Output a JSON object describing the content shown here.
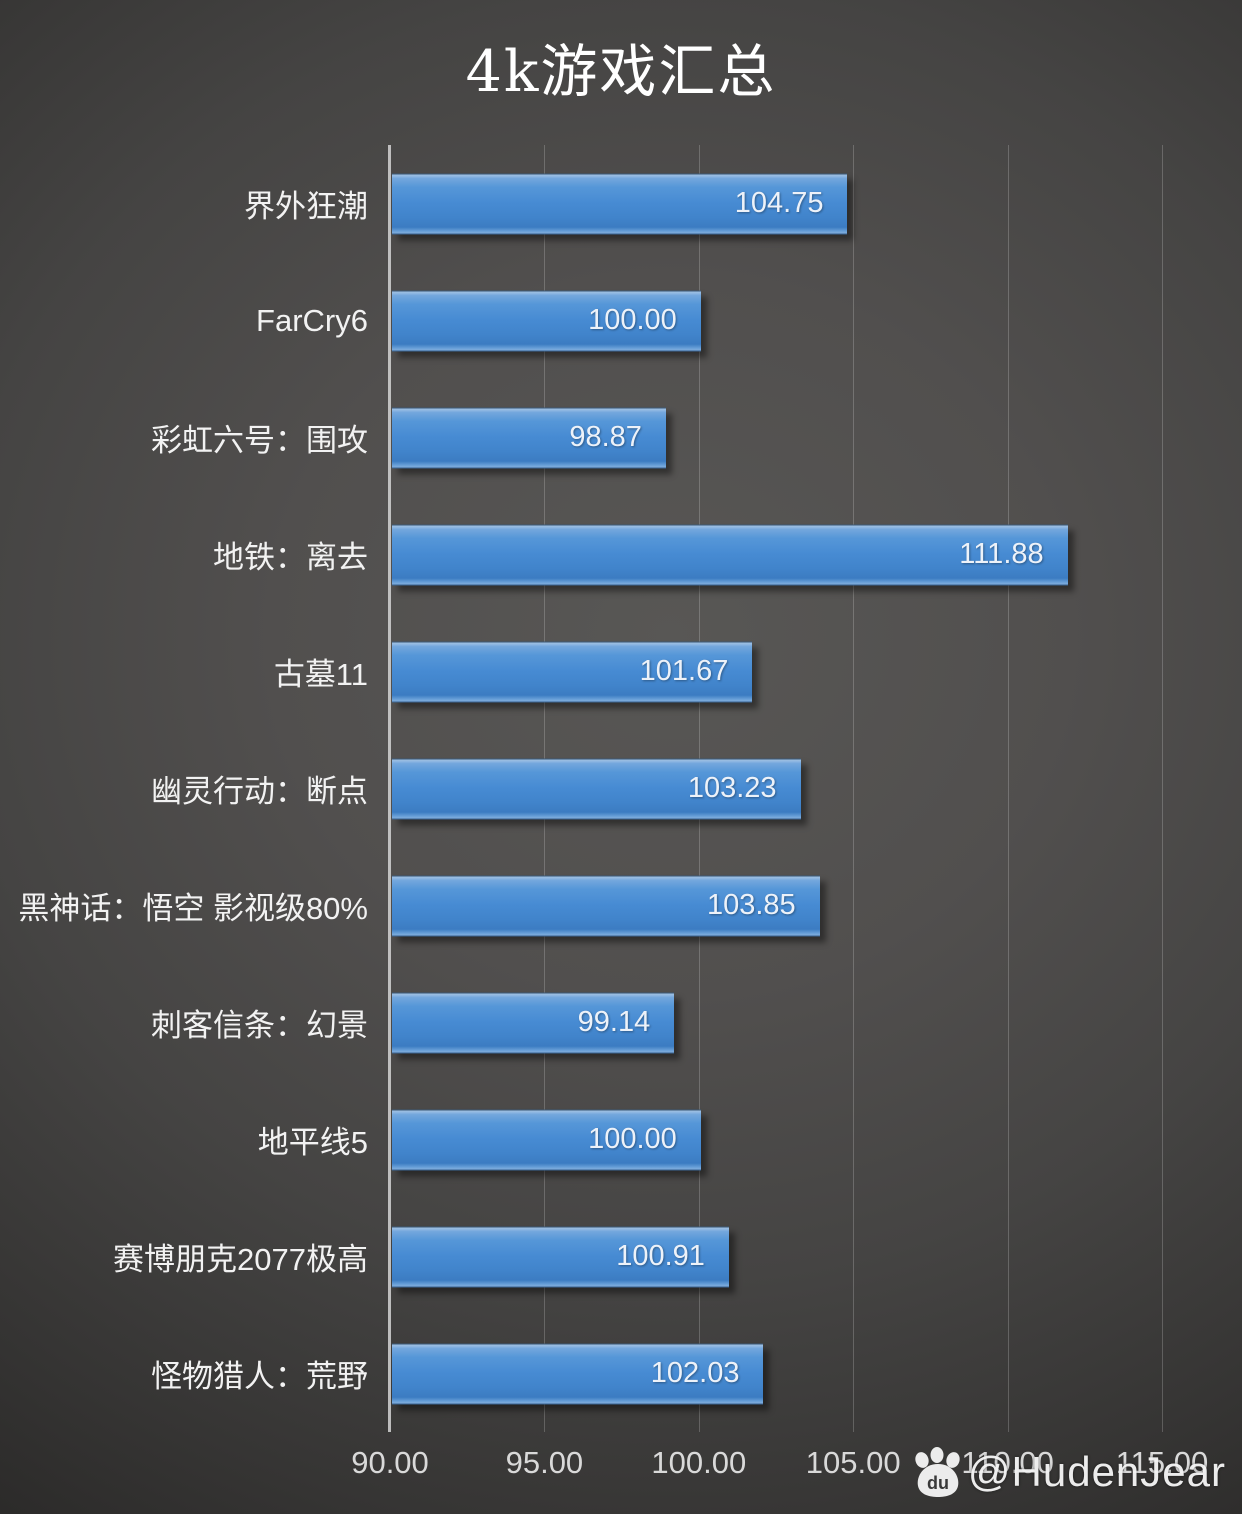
{
  "title": "4k游戏汇总",
  "watermark": {
    "text": "@HudenJear",
    "icon": "paw-icon"
  },
  "colors": {
    "bar_main": "#478bd3",
    "bar_highlight": "#9dc0e4",
    "background_center": "#585755",
    "background_edge": "#232221",
    "axis_line": "#d4d4d4",
    "gridline": "rgba(255,255,255,0.20)",
    "title_text": "#ffffff",
    "category_text": "#f2f2f2",
    "value_text": "#edf2f9",
    "tick_text": "#d9d9d9"
  },
  "chart_data": {
    "type": "bar",
    "orientation": "horizontal",
    "title": "4k游戏汇总",
    "categories": [
      "界外狂潮",
      "FarCry6",
      "彩虹六号：围攻",
      "地铁：离去",
      "古墓11",
      "幽灵行动：断点",
      "黑神话：悟空 影视级80%",
      "刺客信条：幻景",
      "地平线5",
      "赛博朋克2077极高",
      "怪物猎人：荒野"
    ],
    "values": [
      104.75,
      100.0,
      98.87,
      111.88,
      101.67,
      103.23,
      103.85,
      99.14,
      100.0,
      100.91,
      102.03
    ],
    "value_labels": [
      "104.75",
      "100.00",
      "98.87",
      "111.88",
      "101.67",
      "103.23",
      "103.85",
      "99.14",
      "100.00",
      "100.91",
      "102.03"
    ],
    "xlabel": "",
    "ylabel": "",
    "xlim": [
      90,
      115
    ],
    "x_ticks": [
      "90.00",
      "95.00",
      "100.00",
      "105.00",
      "110.00",
      "115.00"
    ],
    "x_tick_values": [
      90,
      95,
      100,
      105,
      110,
      115
    ],
    "grid": true,
    "legend_position": "none",
    "data_labels": "inside-end"
  }
}
